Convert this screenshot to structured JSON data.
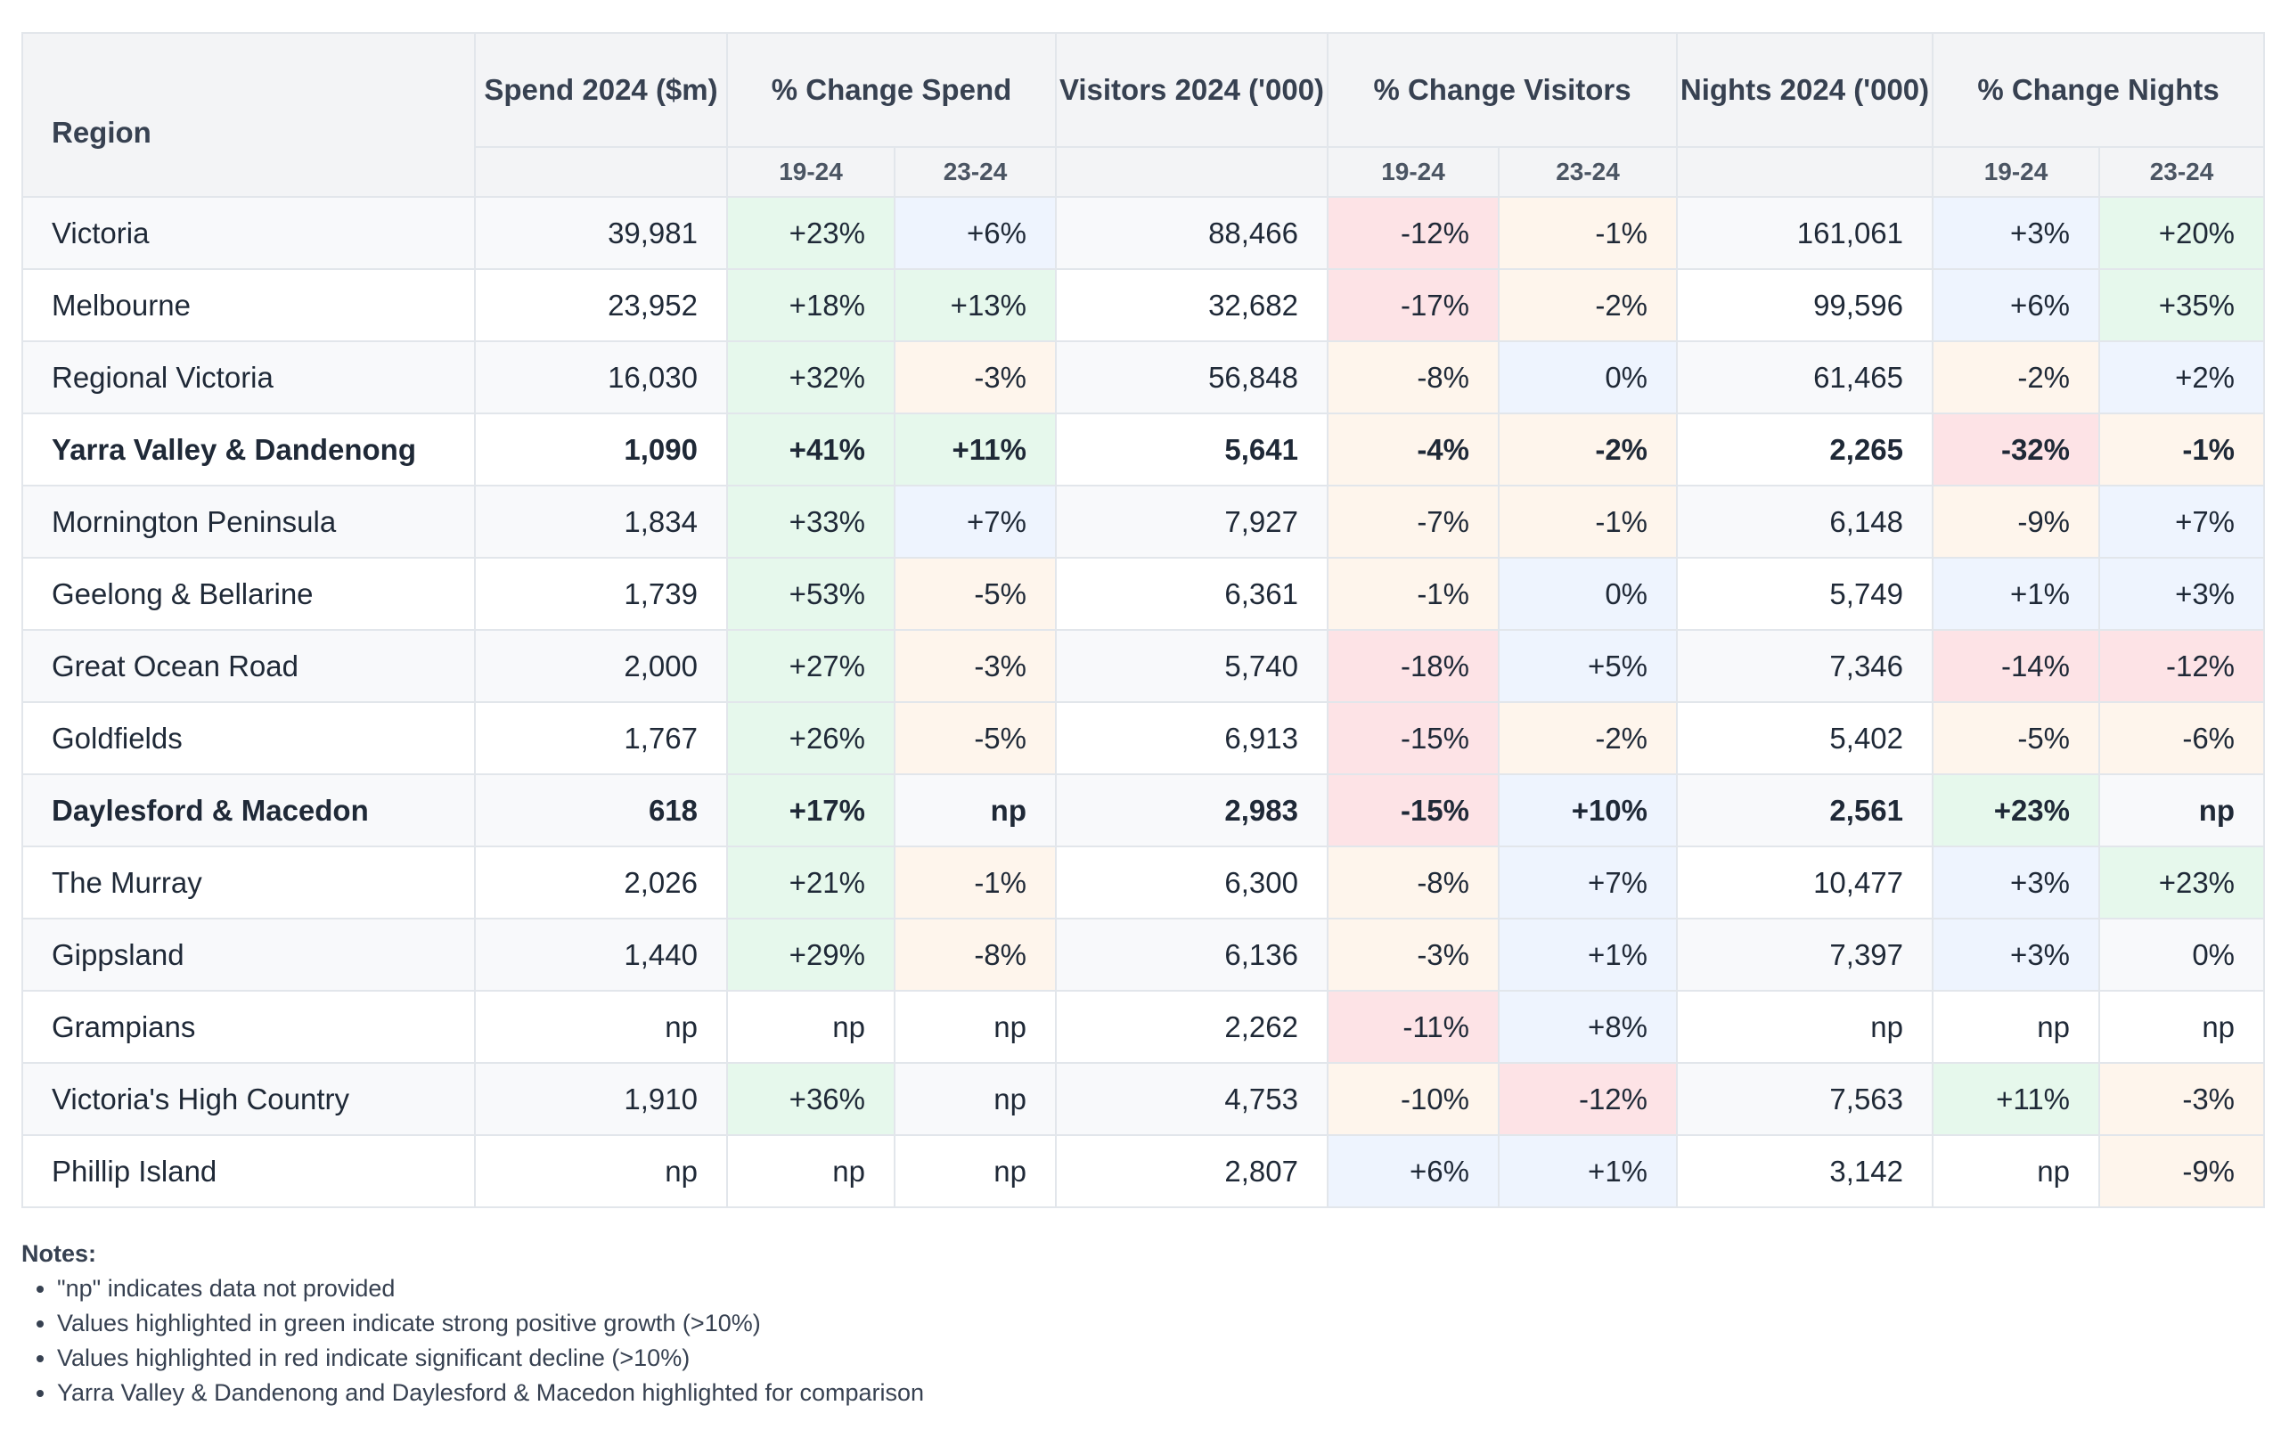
{
  "table": {
    "headers": {
      "region": "Region",
      "spend": "Spend 2024 ($m)",
      "change_spend": "% Change Spend",
      "visitors": "Visitors 2024 ('000)",
      "change_visitors": "% Change Visitors",
      "nights": "Nights 2024 ('000)",
      "change_nights": "% Change Nights",
      "sub_19_24": "19-24",
      "sub_23_24": "23-24"
    },
    "rows": [
      {
        "region": "Victoria",
        "bold": false,
        "spend": "39,981",
        "spend_19_24": "+23%",
        "spend_23_24": "+6%",
        "visitors": "88,466",
        "visitors_19_24": "-12%",
        "visitors_23_24": "-1%",
        "nights": "161,061",
        "nights_19_24": "+3%",
        "nights_23_24": "+20%"
      },
      {
        "region": "Melbourne",
        "bold": false,
        "spend": "23,952",
        "spend_19_24": "+18%",
        "spend_23_24": "+13%",
        "visitors": "32,682",
        "visitors_19_24": "-17%",
        "visitors_23_24": "-2%",
        "nights": "99,596",
        "nights_19_24": "+6%",
        "nights_23_24": "+35%"
      },
      {
        "region": "Regional Victoria",
        "bold": false,
        "spend": "16,030",
        "spend_19_24": "+32%",
        "spend_23_24": "-3%",
        "visitors": "56,848",
        "visitors_19_24": "-8%",
        "visitors_23_24": "0%",
        "nights": "61,465",
        "nights_19_24": "-2%",
        "nights_23_24": "+2%"
      },
      {
        "region": "Yarra Valley & Dandenong",
        "bold": true,
        "spend": "1,090",
        "spend_19_24": "+41%",
        "spend_23_24": "+11%",
        "visitors": "5,641",
        "visitors_19_24": "-4%",
        "visitors_23_24": "-2%",
        "nights": "2,265",
        "nights_19_24": "-32%",
        "nights_23_24": "-1%"
      },
      {
        "region": "Mornington Peninsula",
        "bold": false,
        "spend": "1,834",
        "spend_19_24": "+33%",
        "spend_23_24": "+7%",
        "visitors": "7,927",
        "visitors_19_24": "-7%",
        "visitors_23_24": "-1%",
        "nights": "6,148",
        "nights_19_24": "-9%",
        "nights_23_24": "+7%"
      },
      {
        "region": "Geelong & Bellarine",
        "bold": false,
        "spend": "1,739",
        "spend_19_24": "+53%",
        "spend_23_24": "-5%",
        "visitors": "6,361",
        "visitors_19_24": "-1%",
        "visitors_23_24": "0%",
        "nights": "5,749",
        "nights_19_24": "+1%",
        "nights_23_24": "+3%"
      },
      {
        "region": "Great Ocean Road",
        "bold": false,
        "spend": "2,000",
        "spend_19_24": "+27%",
        "spend_23_24": "-3%",
        "visitors": "5,740",
        "visitors_19_24": "-18%",
        "visitors_23_24": "+5%",
        "nights": "7,346",
        "nights_19_24": "-14%",
        "nights_23_24": "-12%"
      },
      {
        "region": "Goldfields",
        "bold": false,
        "spend": "1,767",
        "spend_19_24": "+26%",
        "spend_23_24": "-5%",
        "visitors": "6,913",
        "visitors_19_24": "-15%",
        "visitors_23_24": "-2%",
        "nights": "5,402",
        "nights_19_24": "-5%",
        "nights_23_24": "-6%"
      },
      {
        "region": "Daylesford & Macedon",
        "bold": true,
        "spend": "618",
        "spend_19_24": "+17%",
        "spend_23_24": "np",
        "visitors": "2,983",
        "visitors_19_24": "-15%",
        "visitors_23_24": "+10%",
        "nights": "2,561",
        "nights_19_24": "+23%",
        "nights_23_24": "np"
      },
      {
        "region": "The Murray",
        "bold": false,
        "spend": "2,026",
        "spend_19_24": "+21%",
        "spend_23_24": "-1%",
        "visitors": "6,300",
        "visitors_19_24": "-8%",
        "visitors_23_24": "+7%",
        "nights": "10,477",
        "nights_19_24": "+3%",
        "nights_23_24": "+23%"
      },
      {
        "region": "Gippsland",
        "bold": false,
        "spend": "1,440",
        "spend_19_24": "+29%",
        "spend_23_24": "-8%",
        "visitors": "6,136",
        "visitors_19_24": "-3%",
        "visitors_23_24": "+1%",
        "nights": "7,397",
        "nights_19_24": "+3%",
        "nights_23_24": "0%"
      },
      {
        "region": "Grampians",
        "bold": false,
        "spend": "np",
        "spend_19_24": "np",
        "spend_23_24": "np",
        "visitors": "2,262",
        "visitors_19_24": "-11%",
        "visitors_23_24": "+8%",
        "nights": "np",
        "nights_19_24": "np",
        "nights_23_24": "np"
      },
      {
        "region": "Victoria's High Country",
        "bold": false,
        "spend": "1,910",
        "spend_19_24": "+36%",
        "spend_23_24": "np",
        "visitors": "4,753",
        "visitors_19_24": "-10%",
        "visitors_23_24": "-12%",
        "nights": "7,563",
        "nights_19_24": "+11%",
        "nights_23_24": "-3%"
      },
      {
        "region": "Phillip Island",
        "bold": false,
        "spend": "np",
        "spend_19_24": "np",
        "spend_23_24": "np",
        "visitors": "2,807",
        "visitors_19_24": "+6%",
        "visitors_23_24": "+1%",
        "nights": "3,142",
        "nights_19_24": "np",
        "nights_23_24": "-9%"
      }
    ]
  },
  "notes": {
    "title": "Notes:",
    "items": [
      "\"np\" indicates data not provided",
      "Values highlighted in green indicate strong positive growth (>10%)",
      "Values highlighted in red indicate significant decline (>10%)",
      "Yarra Valley & Dandenong and Daylesford & Macedon highlighted for comparison"
    ]
  },
  "colors": {
    "header_bg": "#f3f4f6",
    "row_alt_bg": "#f8f9fb",
    "strong_growth_green": "#e6f8ec",
    "significant_decline_red": "#fde3e6",
    "mild_positive_blue": "#eef4fe",
    "mild_negative_orange": "#fef5ec",
    "border": "#e2e6eb"
  }
}
